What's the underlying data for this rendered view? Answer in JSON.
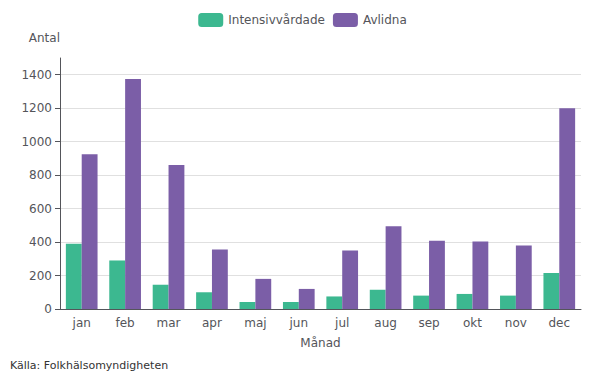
{
  "chart_data": {
    "type": "bar",
    "categories": [
      "jan",
      "feb",
      "mar",
      "apr",
      "maj",
      "jun",
      "jul",
      "aug",
      "sep",
      "okt",
      "nov",
      "dec"
    ],
    "series": [
      {
        "name": "Intensivvårdade",
        "color": "#3cb890",
        "values": [
          390,
          290,
          145,
          100,
          42,
          42,
          75,
          115,
          80,
          90,
          80,
          215
        ]
      },
      {
        "name": "Avlidna",
        "color": "#7b5ea7",
        "values": [
          925,
          1375,
          860,
          355,
          180,
          120,
          350,
          495,
          408,
          403,
          380,
          1200
        ]
      }
    ],
    "xlabel": "Månad",
    "ylabel": "Antal",
    "annotation": "Källa: Folkhälsomyndigheten",
    "ylim": [
      0,
      1500
    ],
    "yticks": [
      0,
      200,
      400,
      600,
      800,
      1000,
      1200,
      1400
    ],
    "grid": true,
    "legend": "top"
  }
}
